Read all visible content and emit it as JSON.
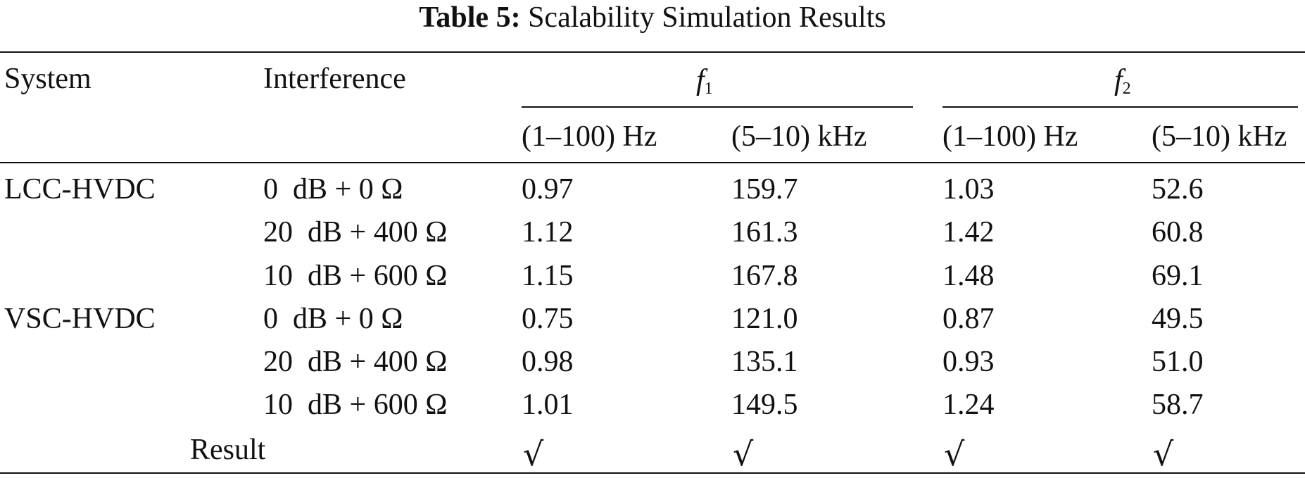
{
  "caption": {
    "label": "Table 5:",
    "title": "Scalability Simulation Results"
  },
  "header": {
    "system": "System",
    "interference": "Interference",
    "f1": {
      "symbol": "f",
      "subscript": "1"
    },
    "f2": {
      "symbol": "f",
      "subscript": "2"
    },
    "sub_columns": [
      "(1–100) Hz",
      "(5–10) kHz",
      "(1–100) Hz",
      "(5–10) kHz"
    ]
  },
  "rows": [
    {
      "system": "LCC-HVDC",
      "interference": "0  dB + 0 Ω",
      "values": [
        "0.97",
        "159.7",
        "1.03",
        "52.6"
      ]
    },
    {
      "system": "",
      "interference": "20  dB + 400 Ω",
      "values": [
        "1.12",
        "161.3",
        "1.42",
        "60.8"
      ]
    },
    {
      "system": "",
      "interference": "10  dB + 600 Ω",
      "values": [
        "1.15",
        "167.8",
        "1.48",
        "69.1"
      ]
    },
    {
      "system": "VSC-HVDC",
      "interference": "0  dB + 0 Ω",
      "values": [
        "0.75",
        "121.0",
        "0.87",
        "49.5"
      ]
    },
    {
      "system": "",
      "interference": "20  dB + 400 Ω",
      "values": [
        "0.98",
        "135.1",
        "0.93",
        "51.0"
      ]
    },
    {
      "system": "",
      "interference": "10  dB + 600 Ω",
      "values": [
        "1.01",
        "149.5",
        "1.24",
        "58.7"
      ]
    }
  ],
  "result": {
    "label": "Result",
    "marks": [
      "√",
      "√",
      "√",
      "√"
    ]
  }
}
